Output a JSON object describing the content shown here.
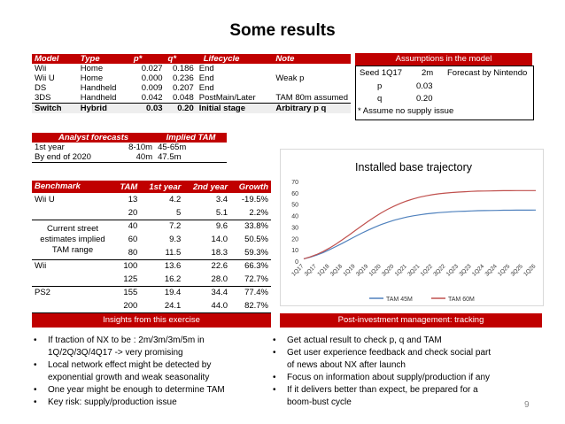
{
  "slide_title": "Some results",
  "model_table": {
    "headers": [
      "Model",
      "Type",
      "p*",
      "q*",
      "Lifecycle",
      "Note"
    ],
    "rows": [
      [
        "Wii",
        "Home",
        "0.027",
        "0.186",
        "End",
        ""
      ],
      [
        "Wii U",
        "Home",
        "0.000",
        "0.236",
        "End",
        "Weak p"
      ],
      [
        "DS",
        "Handheld",
        "0.009",
        "0.207",
        "End",
        ""
      ],
      [
        "3DS",
        "Handheld",
        "0.042",
        "0.048",
        "PostMain/Later",
        "TAM 80m assumed"
      ],
      [
        "Switch",
        "Hybrid",
        "0.03",
        "0.20",
        "Initial stage",
        "Arbitrary p q"
      ]
    ]
  },
  "assumptions": {
    "header": "Assumptions in the model",
    "seed_label": "Seed 1Q17",
    "seed_value": "2m",
    "seed_note": "Forecast by Nintendo",
    "p_label": "p",
    "p_value": "0.03",
    "q_label": "q",
    "q_value": "0.20",
    "footnote": "* Assume no supply issue"
  },
  "analyst": {
    "header_left": "Analyst forecasts",
    "header_right": "Implied TAM",
    "rows": [
      [
        "1st year",
        "8-10m",
        "45-65m"
      ],
      [
        "By end of 2020",
        "40m",
        "47.5m"
      ]
    ]
  },
  "benchmark": {
    "headers": [
      "Benchmark",
      "TAM",
      "1st year",
      "2nd year",
      "Growth"
    ],
    "wiiu_label": "Wii U",
    "current_label": [
      "Current street",
      "estimates implied",
      "TAM range"
    ],
    "wii_label": "Wii",
    "ps2_label": "PS2",
    "rows": [
      [
        "13",
        "4.2",
        "3.4",
        "-19.5%"
      ],
      [
        "20",
        "5",
        "5.1",
        "2.2%"
      ],
      [
        "40",
        "7.2",
        "9.6",
        "33.8%"
      ],
      [
        "60",
        "9.3",
        "14.0",
        "50.5%"
      ],
      [
        "80",
        "11.5",
        "18.3",
        "59.3%"
      ],
      [
        "100",
        "13.6",
        "22.6",
        "66.3%"
      ],
      [
        "125",
        "16.2",
        "28.0",
        "72.7%"
      ],
      [
        "155",
        "19.4",
        "34.4",
        "77.4%"
      ],
      [
        "200",
        "24.1",
        "44.0",
        "82.7%"
      ]
    ]
  },
  "chart_data": {
    "type": "line",
    "title": "Installed base trajectory",
    "categories": [
      "1Q17",
      "2Q17",
      "3Q17",
      "4Q17",
      "1Q18",
      "2Q18",
      "3Q18",
      "4Q18",
      "1Q19",
      "2Q19",
      "3Q19",
      "4Q19",
      "1Q20",
      "2Q20",
      "3Q20",
      "4Q20",
      "1Q21",
      "2Q21",
      "3Q21",
      "4Q21",
      "1Q22",
      "2Q22",
      "3Q22",
      "4Q22",
      "1Q23",
      "2Q23",
      "3Q23",
      "4Q23",
      "1Q24",
      "2Q24",
      "3Q24",
      "4Q24",
      "1Q25",
      "2Q25",
      "3Q25",
      "4Q25",
      "1Q26"
    ],
    "tick_labels": [
      "1Q17",
      "3Q17",
      "1Q18",
      "3Q18",
      "1Q19",
      "3Q19",
      "1Q20",
      "3Q20",
      "1Q21",
      "3Q21",
      "1Q22",
      "3Q22",
      "1Q23",
      "3Q23",
      "1Q24",
      "3Q24",
      "1Q25",
      "3Q25",
      "1Q26"
    ],
    "ylim": [
      0,
      70
    ],
    "yticks": [
      0,
      10,
      20,
      30,
      40,
      50,
      60,
      70
    ],
    "series": [
      {
        "name": "TAM 45M",
        "color": "#4f81bd",
        "values": [
          2,
          3.5,
          5.3,
          7.5,
          10,
          12.8,
          15.7,
          18.7,
          21.7,
          24.6,
          27.3,
          29.8,
          32.1,
          34.1,
          35.9,
          37.4,
          38.7,
          39.8,
          40.7,
          41.5,
          42.1,
          42.6,
          43.0,
          43.4,
          43.7,
          43.9,
          44.1,
          44.3,
          44.4,
          44.5,
          44.6,
          44.7,
          44.7,
          44.8,
          44.8,
          44.8,
          44.9
        ]
      },
      {
        "name": "TAM 60M",
        "color": "#c0504d",
        "values": [
          2,
          3.7,
          5.8,
          8.4,
          11.5,
          15.0,
          18.8,
          22.8,
          26.9,
          31.0,
          35.0,
          38.8,
          42.3,
          45.5,
          48.3,
          50.8,
          52.9,
          54.7,
          56.2,
          57.4,
          58.4,
          59.2,
          59.8,
          60.3,
          60.7,
          61.0,
          61.3,
          61.5,
          61.6,
          61.7,
          61.8,
          61.9,
          61.9,
          62.0,
          62.0,
          62.0,
          62.0
        ]
      }
    ],
    "legend": "bottom",
    "grid": false
  },
  "insights": {
    "header": "Insights from this exercise",
    "items": [
      [
        "If traction of NX to be : 2m/3m/3m/5m in",
        "1Q/2Q/3Q/4Q17 -> very promising"
      ],
      [
        "Local network effect might be detected by",
        "exponential growth and weak seasonality"
      ],
      [
        "One year might be enough to determine TAM"
      ],
      [
        "Key  risk: supply/production issue"
      ]
    ]
  },
  "post_investment": {
    "header": "Post-investment management: tracking",
    "items": [
      [
        "Get actual result to check p, q and TAM"
      ],
      [
        "Get user experience feedback and  check social part",
        "of news about NX after launch"
      ],
      [
        "Focus on information about supply/production  if any"
      ],
      [
        "If it delivers better than expect, be prepared for a",
        "boom-bust cycle"
      ]
    ]
  },
  "page_number": "9"
}
